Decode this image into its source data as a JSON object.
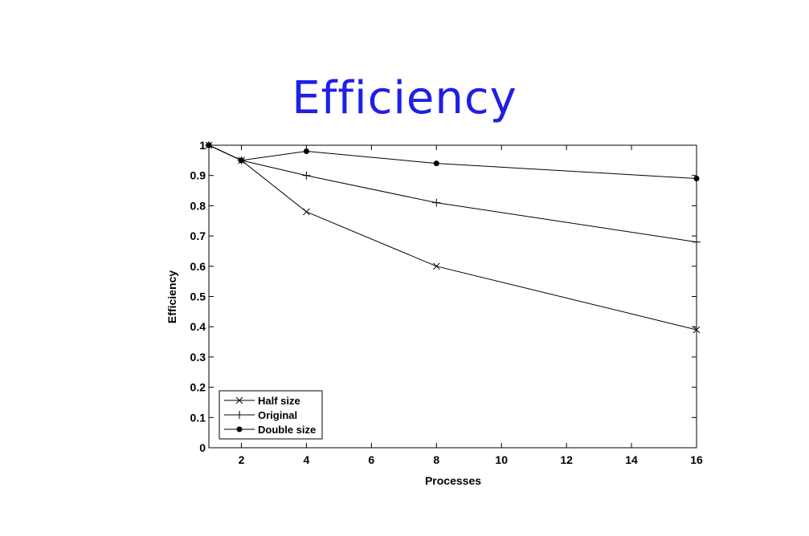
{
  "slide": {
    "title": "Efficiency"
  },
  "chart_data": {
    "type": "line",
    "title": "",
    "xlabel": "Processes",
    "ylabel": "Efficiency",
    "xlim": [
      1,
      16
    ],
    "ylim": [
      0,
      1
    ],
    "xticks": [
      2,
      4,
      6,
      8,
      10,
      12,
      14,
      16
    ],
    "yticks": [
      0,
      0.1,
      0.2,
      0.3,
      0.4,
      0.5,
      0.6,
      0.7,
      0.8,
      0.9,
      1
    ],
    "ytick_labels": [
      "0",
      "0.1",
      "0.2",
      "0.3",
      "0.4",
      "0.5",
      "0.6",
      "0.7",
      "0.8",
      "0.9",
      "1"
    ],
    "grid": false,
    "legend_position": "bottom-left",
    "x": [
      1,
      2,
      4,
      8,
      16
    ],
    "series": [
      {
        "name": "Half size",
        "marker": "x",
        "values": [
          1.0,
          0.95,
          0.78,
          0.6,
          0.39
        ]
      },
      {
        "name": "Original",
        "marker": "plus",
        "values": [
          1.0,
          0.95,
          0.9,
          0.81,
          0.68
        ]
      },
      {
        "name": "Double size",
        "marker": "dot",
        "values": [
          1.0,
          0.95,
          0.98,
          0.94,
          0.89
        ]
      }
    ]
  }
}
